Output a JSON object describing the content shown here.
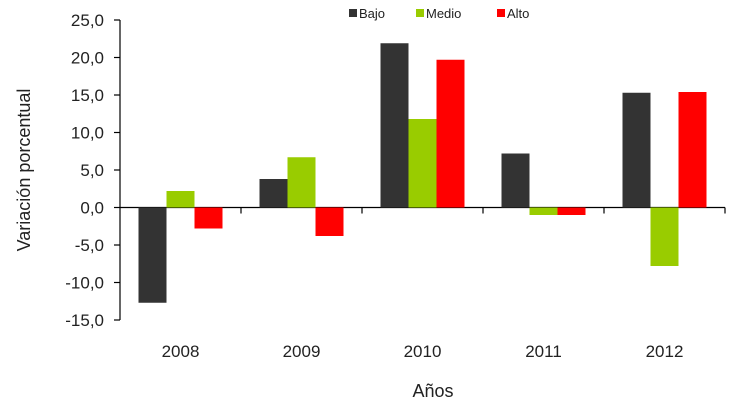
{
  "chart_data": {
    "type": "bar",
    "title": "",
    "xlabel": "Años",
    "ylabel": "Variación porcentual",
    "categories": [
      "2008",
      "2009",
      "2010",
      "2011",
      "2012"
    ],
    "series": [
      {
        "name": "Bajo",
        "color": "#333333",
        "values": [
          -12.7,
          3.8,
          21.9,
          7.2,
          15.3
        ]
      },
      {
        "name": "Medio",
        "color": "#99cc00",
        "values": [
          2.2,
          6.7,
          11.8,
          -1.0,
          -7.8
        ]
      },
      {
        "name": "Alto",
        "color": "#ff0000",
        "values": [
          -2.8,
          -3.8,
          19.7,
          -1.0,
          15.4
        ]
      }
    ],
    "ylim": [
      -15,
      25
    ],
    "yticks": [
      "-15,0",
      "-10,0",
      "-5,0",
      "0,0",
      "5,0",
      "10,0",
      "15,0",
      "20,0",
      "25,0"
    ],
    "grid": false,
    "legend": "top-center"
  }
}
